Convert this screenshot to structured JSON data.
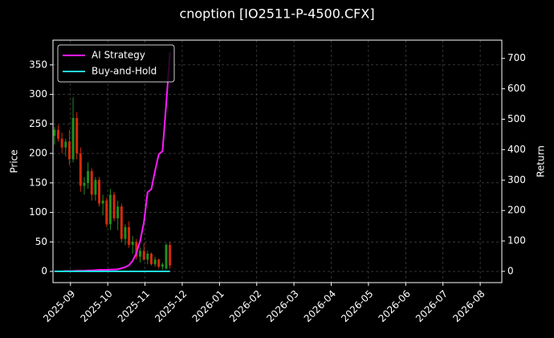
{
  "chart_data": {
    "type": "candlestick",
    "title": "cnoption [IO2511-P-4500.CFX]",
    "ylabel": "Price",
    "y2label": "Return",
    "x": [
      -0.43,
      -0.33,
      -0.23,
      -0.13,
      -0.03,
      0.07,
      0.17,
      0.27,
      0.37,
      0.47,
      0.57,
      0.67,
      0.77,
      0.87,
      0.97,
      1.07,
      1.17,
      1.27,
      1.37,
      1.47,
      1.57,
      1.67,
      1.77,
      1.87,
      1.97,
      2.07,
      2.17,
      2.27,
      2.37,
      2.47,
      2.57,
      2.67
    ],
    "open": [
      230,
      240,
      225,
      210,
      220,
      190,
      260,
      200,
      145,
      150,
      170,
      130,
      155,
      115,
      120,
      80,
      130,
      90,
      110,
      55,
      75,
      45,
      50,
      25,
      35,
      20,
      30,
      12,
      20,
      8,
      5,
      45
    ],
    "high": [
      245,
      248,
      235,
      225,
      240,
      295,
      270,
      210,
      160,
      185,
      175,
      160,
      160,
      130,
      125,
      140,
      135,
      120,
      115,
      80,
      85,
      60,
      55,
      40,
      48,
      35,
      32,
      25,
      22,
      15,
      48,
      50
    ],
    "low": [
      215,
      220,
      200,
      195,
      180,
      185,
      190,
      135,
      130,
      140,
      120,
      120,
      110,
      95,
      75,
      70,
      85,
      70,
      50,
      45,
      40,
      30,
      20,
      15,
      18,
      12,
      10,
      8,
      5,
      3,
      3,
      5
    ],
    "close": [
      240,
      225,
      210,
      220,
      190,
      260,
      200,
      145,
      150,
      170,
      130,
      155,
      115,
      120,
      80,
      130,
      90,
      110,
      55,
      75,
      45,
      50,
      25,
      35,
      20,
      30,
      12,
      20,
      8,
      12,
      45,
      10
    ],
    "up_color": "#1f8f1f",
    "down_color": "#d42a0a",
    "series": [
      {
        "name": "AI Strategy",
        "color": "#ff1aff",
        "axis": "y2",
        "values": [
          0,
          0,
          0,
          1,
          1,
          1,
          2,
          2,
          2,
          3,
          3,
          4,
          5,
          5,
          5,
          6,
          6,
          7,
          10,
          14,
          20,
          35,
          60,
          100,
          160,
          260,
          270,
          330,
          385,
          395,
          550,
          720
        ]
      },
      {
        "name": "Buy-and-Hold",
        "color": "#22dede",
        "axis": "y2",
        "values": [
          0,
          0,
          0,
          0,
          0,
          0,
          0,
          0,
          0,
          0,
          0,
          0,
          0,
          0,
          0,
          0,
          0,
          0,
          0,
          0,
          0,
          0,
          0,
          0,
          0,
          0,
          0,
          0,
          0,
          0,
          0,
          0
        ]
      }
    ],
    "xlim": [
      -0.47,
      11.58
    ],
    "xticks": [
      {
        "value": 0,
        "label": "2025-09"
      },
      {
        "value": 1,
        "label": "2025-10"
      },
      {
        "value": 2,
        "label": "2025-11"
      },
      {
        "value": 3,
        "label": "2025-12"
      },
      {
        "value": 4,
        "label": "2026-01"
      },
      {
        "value": 5,
        "label": "2026-02"
      },
      {
        "value": 6,
        "label": "2026-03"
      },
      {
        "value": 7,
        "label": "2026-04"
      },
      {
        "value": 8,
        "label": "2026-05"
      },
      {
        "value": 9,
        "label": "2026-06"
      },
      {
        "value": 10,
        "label": "2026-07"
      },
      {
        "value": 11,
        "label": "2026-08"
      }
    ],
    "ylim": [
      -19,
      392
    ],
    "yticks": [
      0,
      50,
      100,
      150,
      200,
      250,
      300,
      350
    ],
    "y2lim": [
      -37,
      760
    ],
    "y2ticks": [
      0,
      100,
      200,
      300,
      400,
      500,
      600,
      700
    ],
    "grid": true,
    "legend": "upper left"
  }
}
